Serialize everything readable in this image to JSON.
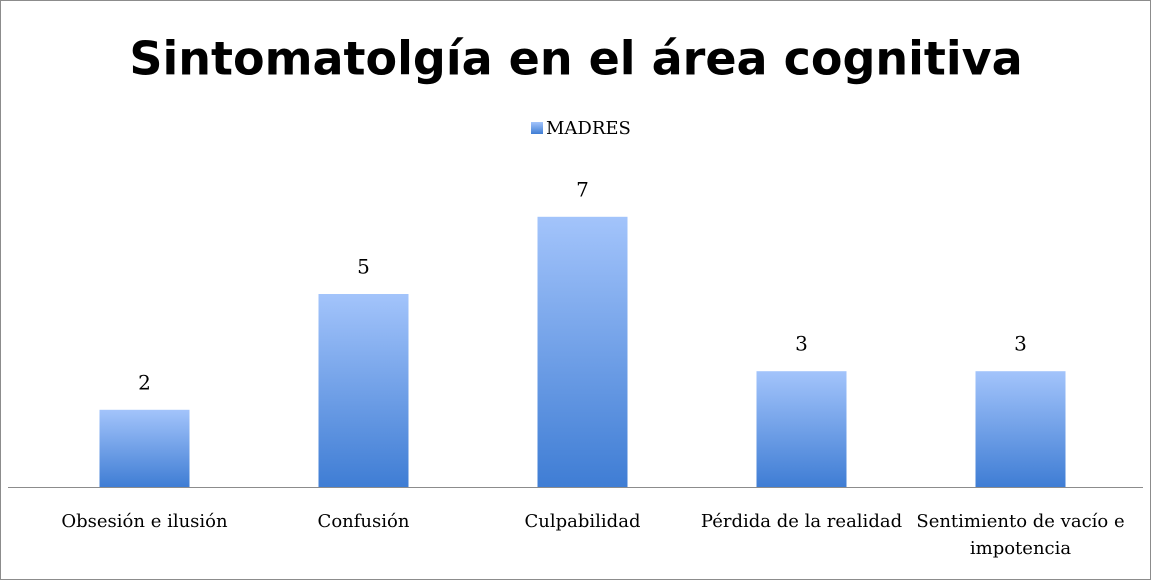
{
  "chart_data": {
    "type": "bar",
    "title": "Sintomatolgía en el área cognitiva",
    "categories": [
      "Obsesión e ilusión",
      "Confusión",
      "Culpabilidad",
      "Pérdida de la realidad",
      "Sentimiento de vacío e impotencia"
    ],
    "series": [
      {
        "name": "MADRES",
        "color": "#4f86d9",
        "values": [
          2,
          5,
          7,
          3,
          3
        ]
      }
    ],
    "legend": "top"
  }
}
